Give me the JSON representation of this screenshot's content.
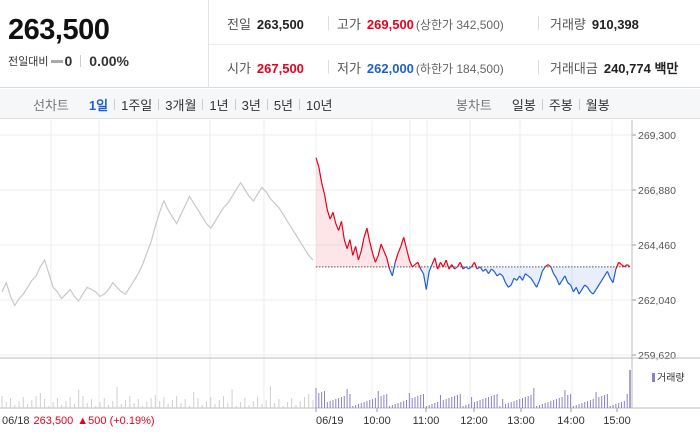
{
  "summary": {
    "price": "263,500",
    "diff_label": "전일대비",
    "diff_value": "0",
    "diff_pct": "0.00%"
  },
  "stats": {
    "prev_label": "전일",
    "prev_value": "263,500",
    "high_label": "고가",
    "high_value": "269,500",
    "upper_limit": "(상한가 342,500)",
    "volume_label": "거래량",
    "volume_value": "910,398",
    "open_label": "시가",
    "open_value": "267,500",
    "low_label": "저가",
    "low_value": "262,000",
    "lower_limit": "(하한가 184,500)",
    "amount_label": "거래대금",
    "amount_value": "240,774 백만"
  },
  "line_tabs": {
    "title": "선차트",
    "items": [
      "1일",
      "1주일",
      "3개월",
      "1년",
      "3년",
      "5년",
      "10년"
    ],
    "active": 0
  },
  "candle_tabs": {
    "title": "봉차트",
    "items": [
      "일봉",
      "주봉",
      "월봉"
    ]
  },
  "footer": {
    "date": "06/18",
    "close": "263,500",
    "change": "▲500 (+0.19%)"
  },
  "colors": {
    "up": "#e8001d",
    "down": "#1f5fd1",
    "prev_day": "#c8c8c8"
  },
  "chart_data": {
    "type": "line",
    "y_ticks": [
      "269,300",
      "266,880",
      "264,460",
      "262,040",
      "259,620"
    ],
    "y_range": [
      259620,
      269300
    ],
    "baseline": 263500,
    "x_ticks": [
      "06/18",
      "06/19",
      "10:00",
      "11:00",
      "12:00",
      "13:00",
      "14:00",
      "15:00"
    ],
    "volume_legend": "거래량",
    "prev_day_series": [
      262400,
      262800,
      262200,
      261800,
      262100,
      262300,
      262600,
      262900,
      263100,
      263500,
      263800,
      263200,
      262600,
      262400,
      262100,
      262300,
      262500,
      262200,
      262000,
      262300,
      262600,
      262500,
      262400,
      262200,
      262300,
      262500,
      262800,
      262600,
      262400,
      262300,
      262600,
      262900,
      263200,
      263600,
      264100,
      264600,
      265300,
      265900,
      266400,
      266000,
      265700,
      265400,
      265800,
      266200,
      266600,
      266300,
      266000,
      265700,
      265400,
      265200,
      265500,
      265800,
      266100,
      266300,
      266600,
      266900,
      267200,
      266900,
      266600,
      266400,
      266700,
      267000,
      266800,
      266500,
      266300,
      266100,
      265800,
      265500,
      265200,
      264900,
      264600,
      264300,
      264000,
      263800
    ],
    "today_series": [
      268300,
      267900,
      267200,
      266700,
      266000,
      265600,
      265900,
      265400,
      265100,
      265500,
      264700,
      264300,
      264700,
      264000,
      264400,
      263800,
      264200,
      264800,
      265200,
      264600,
      264100,
      263700,
      264000,
      264500,
      264200,
      263900,
      263400,
      263100,
      263700,
      264100,
      264400,
      264800,
      264300,
      263800,
      263500,
      263600,
      263700,
      263400,
      263200,
      262500,
      263300,
      263600,
      263900,
      263400,
      263700,
      263500,
      263800,
      263400,
      263600,
      263400,
      263500,
      263700,
      263400,
      263500,
      263400,
      263500,
      263700,
      263400,
      263500,
      263300,
      263400,
      263200,
      263400,
      263300,
      263100,
      263200,
      263100,
      262800,
      262600,
      262700,
      263000,
      262900,
      263100,
      262900,
      263200,
      263100,
      263000,
      262800,
      262600,
      262900,
      263300,
      263500,
      263600,
      263500,
      263200,
      263000,
      262700,
      262900,
      263100,
      262800,
      262700,
      262400,
      262600,
      262300,
      262500,
      262700,
      262600,
      262400,
      262300,
      262500,
      262700,
      262900,
      263100,
      263300,
      263000,
      262800,
      263400,
      263700,
      263600,
      263500,
      263600,
      263500
    ]
  }
}
